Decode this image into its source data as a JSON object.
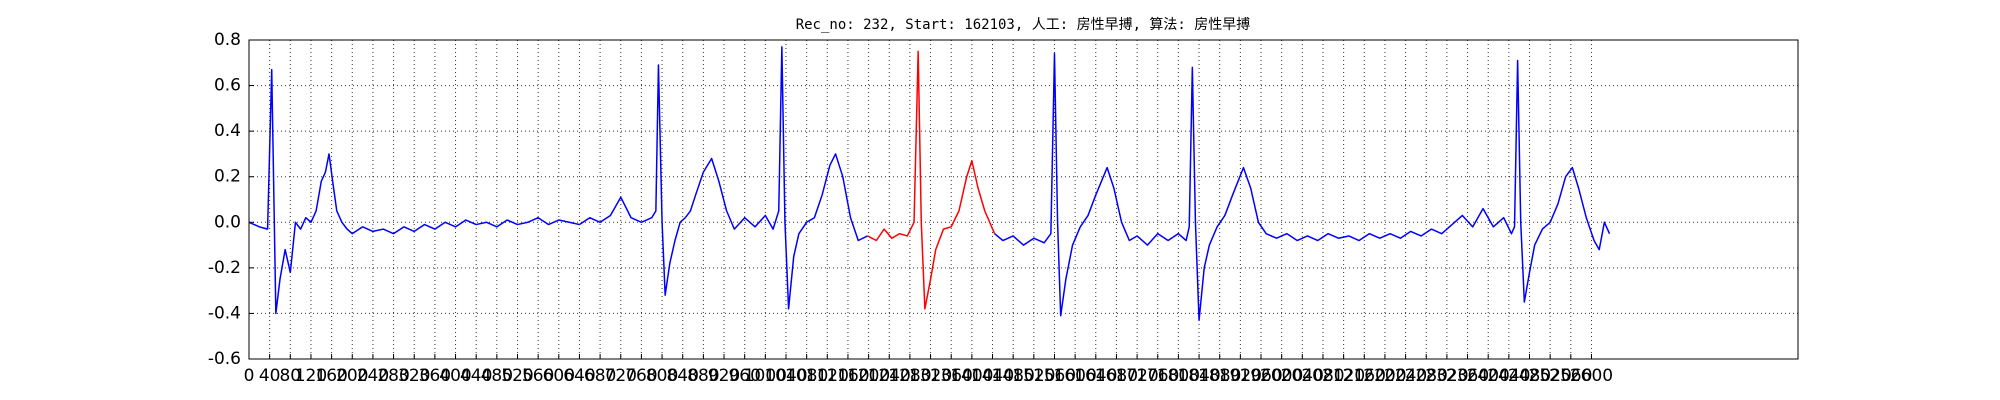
{
  "chart_data": {
    "type": "line",
    "title": "Rec_no: 232, Start: 162103, 人工: 房性早搏, 算法: 房性早搏",
    "xlim": [
      0,
      3000
    ],
    "xticks": [
      0,
      40,
      80,
      120,
      160,
      200,
      240,
      280,
      320,
      360,
      400,
      440,
      480,
      520,
      560,
      600,
      640,
      680,
      720,
      760,
      800,
      840,
      880,
      920,
      960,
      1000,
      1040,
      1080,
      1120,
      1160,
      1200,
      1240,
      1280,
      1320,
      1360,
      1400,
      1440,
      1480,
      1520,
      1560,
      1600,
      1640,
      1680,
      1720,
      1760,
      1800,
      1840,
      1880,
      1920,
      1960,
      2000,
      2040,
      2080,
      2120,
      2160,
      2200,
      2240,
      2280,
      2320,
      2360,
      2400,
      2440,
      2480,
      2520,
      2560,
      2600
    ],
    "ylim": [
      -0.6,
      0.8
    ],
    "yticks": [
      -0.6,
      -0.4,
      -0.2,
      {
        "value": 0,
        "label": "0.0"
      },
      0.2,
      0.4,
      0.6,
      0.8
    ],
    "grid": true,
    "series": [
      {
        "color": "#0000ff",
        "x": [
          0,
          20,
          36,
          44,
          52,
          60,
          70,
          80,
          90,
          100,
          110,
          120,
          130,
          140,
          148,
          155,
          162,
          170,
          180,
          190,
          200,
          220,
          240,
          260,
          280,
          300,
          320,
          340,
          360,
          380,
          400,
          420,
          440,
          460,
          480,
          500,
          520,
          540,
          560,
          580,
          600,
          620,
          640,
          660,
          680,
          700,
          720,
          740,
          760,
          780,
          788,
          793,
          800,
          806,
          815,
          825,
          835,
          845,
          855,
          865,
          880,
          896,
          910,
          925,
          940,
          960,
          980,
          1000,
          1015,
          1026,
          1032,
          1038,
          1045,
          1055,
          1065,
          1080,
          1095,
          1110,
          1125,
          1136,
          1150,
          1165,
          1180,
          1198
        ],
        "values": [
          0.0,
          -0.02,
          -0.03,
          0.67,
          -0.4,
          -0.25,
          -0.12,
          -0.22,
          0.0,
          -0.03,
          0.02,
          0.0,
          0.05,
          0.18,
          0.22,
          0.3,
          0.18,
          0.05,
          0.0,
          -0.03,
          -0.05,
          -0.02,
          -0.04,
          -0.03,
          -0.05,
          -0.02,
          -0.04,
          -0.01,
          -0.03,
          0.0,
          -0.02,
          0.01,
          -0.01,
          0.0,
          -0.02,
          0.01,
          -0.01,
          0.0,
          0.02,
          -0.01,
          0.01,
          0.0,
          -0.01,
          0.02,
          0.0,
          0.03,
          0.11,
          0.02,
          0.0,
          0.02,
          0.05,
          0.69,
          0.0,
          -0.32,
          -0.18,
          -0.08,
          0.0,
          0.02,
          0.05,
          0.12,
          0.22,
          0.28,
          0.18,
          0.05,
          -0.03,
          0.02,
          -0.02,
          0.03,
          -0.03,
          0.05,
          0.77,
          0.0,
          -0.38,
          -0.15,
          -0.05,
          0.0,
          0.02,
          0.12,
          0.25,
          0.3,
          0.2,
          0.02,
          -0.08,
          -0.06
        ]
      },
      {
        "color": "#ff0000",
        "x": [
          1198,
          1215,
          1230,
          1245,
          1260,
          1275,
          1288,
          1296,
          1302,
          1309,
          1320,
          1330,
          1345,
          1360,
          1375,
          1390,
          1400,
          1412,
          1425,
          1444
        ],
        "values": [
          -0.06,
          -0.08,
          -0.03,
          -0.07,
          -0.05,
          -0.06,
          0.0,
          0.75,
          0.0,
          -0.38,
          -0.25,
          -0.12,
          -0.03,
          -0.02,
          0.05,
          0.2,
          0.27,
          0.15,
          0.05,
          -0.05
        ]
      },
      {
        "color": "#0000ff",
        "x": [
          1444,
          1460,
          1480,
          1500,
          1520,
          1540,
          1553,
          1560,
          1566,
          1572,
          1582,
          1595,
          1610,
          1625,
          1640,
          1662,
          1675,
          1690,
          1705,
          1720,
          1740,
          1760,
          1780,
          1800,
          1815,
          1821,
          1827,
          1833,
          1840,
          1850,
          1860,
          1875,
          1890,
          1905,
          1926,
          1940,
          1955,
          1970,
          1990,
          2010,
          2030,
          2050,
          2070,
          2090,
          2110,
          2130,
          2150,
          2170,
          2190,
          2210,
          2230,
          2250,
          2270,
          2290,
          2310,
          2330,
          2350,
          2370,
          2390,
          2410,
          2430,
          2445,
          2451,
          2457,
          2463,
          2470,
          2480,
          2490,
          2505,
          2520,
          2535,
          2550,
          2563,
          2575,
          2590,
          2605,
          2615,
          2625,
          2635
        ],
        "values": [
          -0.05,
          -0.08,
          -0.06,
          -0.1,
          -0.07,
          -0.09,
          -0.05,
          0.74,
          0.0,
          -0.41,
          -0.25,
          -0.1,
          -0.02,
          0.03,
          0.12,
          0.24,
          0.15,
          0.0,
          -0.08,
          -0.06,
          -0.1,
          -0.05,
          -0.08,
          -0.05,
          -0.08,
          -0.02,
          0.68,
          0.0,
          -0.43,
          -0.2,
          -0.1,
          -0.02,
          0.03,
          0.12,
          0.24,
          0.15,
          0.0,
          -0.05,
          -0.07,
          -0.05,
          -0.08,
          -0.06,
          -0.08,
          -0.05,
          -0.07,
          -0.06,
          -0.08,
          -0.05,
          -0.07,
          -0.05,
          -0.07,
          -0.04,
          -0.06,
          -0.03,
          -0.05,
          -0.01,
          0.03,
          -0.02,
          0.06,
          -0.02,
          0.02,
          -0.05,
          -0.02,
          0.71,
          0.0,
          -0.35,
          -0.22,
          -0.1,
          -0.03,
          0.0,
          0.08,
          0.2,
          0.24,
          0.15,
          0.02,
          -0.08,
          -0.12,
          0.0,
          -0.05
        ]
      }
    ]
  }
}
